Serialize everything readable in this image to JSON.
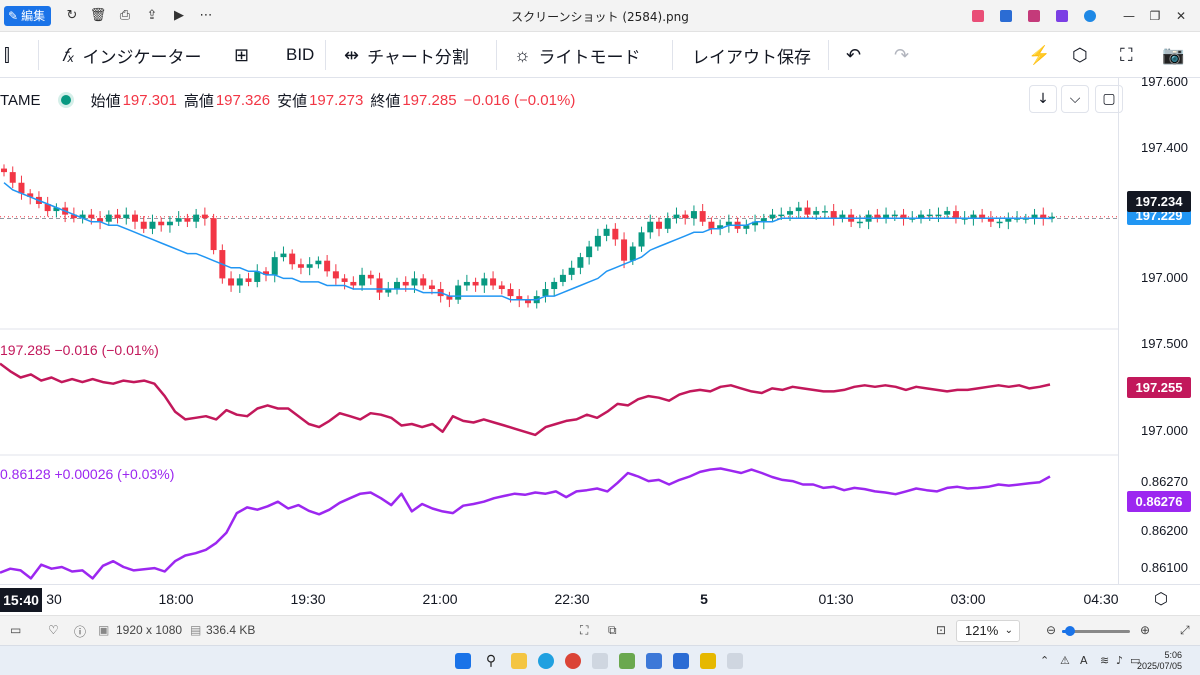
{
  "window": {
    "title": "スクリーンショット (2584).png",
    "edit_label": "編集"
  },
  "toolbar": {
    "indicator_label": "インジケーター",
    "bid_label": "BID",
    "split_label": "チャート分割",
    "light_mode_label": "ライトモード",
    "save_layout_label": "レイアウト保存"
  },
  "legend": {
    "symbol": "TAME",
    "open_label": "始値",
    "open": "197.301",
    "high_label": "高値",
    "high": "197.326",
    "low_label": "安値",
    "low": "197.273",
    "close_label": "終値",
    "close": "197.285",
    "change": "−0.016 (−0.01%)"
  },
  "pane2": {
    "legend": "197.285  −0.016 (−0.01%)",
    "color": "#c2185b"
  },
  "pane3": {
    "legend": "0.86128  +0.00026 (+0.03%)",
    "color": "#9c27f0"
  },
  "price_scale": {
    "main_ticks": [
      "197.600",
      "197.400",
      "197.000"
    ],
    "main_last": "197.234",
    "main_ma": "197.229",
    "pane2_ticks": [
      "197.500",
      "197.000"
    ],
    "pane2_last": "197.255",
    "pane3_ticks": [
      "0.86200",
      "0.86100"
    ],
    "pane3_partial": "0.86270",
    "pane3_last": "0.86276"
  },
  "time_axis": {
    "current": "15:40",
    "partial": "30",
    "ticks": [
      "18:00",
      "19:30",
      "21:00",
      "22:30",
      "5",
      "01:30",
      "03:00",
      "04:30"
    ]
  },
  "viewer": {
    "dimensions": "1920 x 1080",
    "size": "336.4 KB",
    "zoom": "121%",
    "zoom_fraction": 0.12
  },
  "clock": {
    "time": "5:06",
    "date": "2025/07/05"
  },
  "colors": {
    "up": "#089981",
    "down": "#f23645",
    "ma": "#2196f3",
    "last_price_bg": "#131722",
    "ma_tag_bg": "#2196f3",
    "pane2_tag_bg": "#c2185b",
    "pane3_tag_bg": "#9c27f0"
  },
  "chart_data": [
    {
      "type": "candlestick",
      "title": "",
      "ylim": [
        196.92,
        197.62
      ],
      "x_ticks": [
        "15:30",
        "18:00",
        "19:30",
        "21:00",
        "22:30",
        "5",
        "01:30",
        "03:00",
        "04:30"
      ],
      "close_series": [
        197.36,
        197.33,
        197.3,
        197.29,
        197.27,
        197.25,
        197.26,
        197.24,
        197.23,
        197.24,
        197.23,
        197.22,
        197.24,
        197.23,
        197.24,
        197.22,
        197.2,
        197.22,
        197.21,
        197.22,
        197.23,
        197.22,
        197.24,
        197.23,
        197.14,
        197.06,
        197.04,
        197.06,
        197.05,
        197.08,
        197.07,
        197.12,
        197.13,
        197.1,
        197.09,
        197.1,
        197.11,
        197.08,
        197.06,
        197.05,
        197.04,
        197.07,
        197.06,
        197.02,
        197.03,
        197.05,
        197.04,
        197.06,
        197.04,
        197.03,
        197.01,
        197.0,
        197.04,
        197.05,
        197.04,
        197.06,
        197.04,
        197.03,
        197.01,
        197.0,
        196.99,
        197.01,
        197.03,
        197.05,
        197.07,
        197.09,
        197.12,
        197.15,
        197.18,
        197.2,
        197.17,
        197.11,
        197.15,
        197.19,
        197.22,
        197.2,
        197.23,
        197.24,
        197.23,
        197.25,
        197.22,
        197.2,
        197.21,
        197.22,
        197.2,
        197.21,
        197.22,
        197.23,
        197.24,
        197.24,
        197.25,
        197.26,
        197.24,
        197.25,
        197.25,
        197.23,
        197.24,
        197.22,
        197.22,
        197.24,
        197.23,
        197.24,
        197.24,
        197.23,
        197.23,
        197.24,
        197.24,
        197.24,
        197.25,
        197.23,
        197.23,
        197.24,
        197.23,
        197.22,
        197.22,
        197.23,
        197.23,
        197.23,
        197.24,
        197.23,
        197.234
      ],
      "ma_series": [
        197.33,
        197.31,
        197.3,
        197.29,
        197.28,
        197.27,
        197.26,
        197.25,
        197.24,
        197.23,
        197.22,
        197.22,
        197.21,
        197.21,
        197.2,
        197.19,
        197.18,
        197.17,
        197.16,
        197.15,
        197.14,
        197.13,
        197.13,
        197.12,
        197.11,
        197.1,
        197.09,
        197.09,
        197.08,
        197.08,
        197.07,
        197.07,
        197.06,
        197.06,
        197.05,
        197.05,
        197.05,
        197.04,
        197.04,
        197.04,
        197.03,
        197.03,
        197.03,
        197.03,
        197.03,
        197.03,
        197.03,
        197.03,
        197.02,
        197.02,
        197.02,
        197.01,
        197.01,
        197.01,
        197.01,
        197.01,
        197.01,
        197.01,
        197.0,
        197.0,
        197.0,
        197.0,
        197.01,
        197.01,
        197.02,
        197.03,
        197.04,
        197.05,
        197.06,
        197.08,
        197.09,
        197.1,
        197.11,
        197.12,
        197.14,
        197.15,
        197.16,
        197.17,
        197.18,
        197.19,
        197.19,
        197.2,
        197.2,
        197.21,
        197.21,
        197.21,
        197.22,
        197.22,
        197.22,
        197.23,
        197.23,
        197.23,
        197.23,
        197.23,
        197.23,
        197.23,
        197.23,
        197.23,
        197.23,
        197.23,
        197.23,
        197.23,
        197.23,
        197.23,
        197.23,
        197.23,
        197.23,
        197.23,
        197.23,
        197.23,
        197.23,
        197.23,
        197.23,
        197.23,
        197.23,
        197.23,
        197.23,
        197.23,
        197.23,
        197.23,
        197.229
      ],
      "last_price": 197.234
    },
    {
      "type": "line",
      "series": [
        {
          "values": [
            197.39,
            197.34,
            197.3,
            197.32,
            197.28,
            197.3,
            197.27,
            197.29,
            197.27,
            197.29,
            197.27,
            197.26,
            197.28,
            197.27,
            197.28,
            197.26,
            197.18,
            197.08,
            197.03,
            197.04,
            197.05,
            197.03,
            197.09,
            197.06,
            197.05,
            197.1,
            197.12,
            197.1,
            197.1,
            197.05,
            197.0,
            196.98,
            197.02,
            197.07,
            197.05,
            197.03,
            197.07,
            197.06,
            197.04,
            196.99,
            197.0,
            196.98,
            197.0,
            196.95,
            197.05,
            197.02,
            197.01,
            197.03,
            197.01,
            196.99,
            196.97,
            196.95,
            196.93,
            196.98,
            197.0,
            197.02,
            197.03,
            197.06,
            197.04,
            197.08,
            197.13,
            197.12,
            197.16,
            197.18,
            197.17,
            197.15,
            197.19,
            197.21,
            197.22,
            197.21,
            197.24,
            197.25,
            197.23,
            197.21,
            197.2,
            197.23,
            197.22,
            197.24,
            197.23,
            197.22,
            197.21,
            197.21,
            197.22,
            197.24,
            197.25,
            197.24,
            197.25,
            197.24,
            197.22,
            197.24,
            197.23,
            197.22,
            197.21,
            197.22,
            197.22,
            197.23,
            197.24,
            197.25,
            197.24,
            197.25,
            197.23,
            197.24,
            197.255
          ]
        }
      ],
      "ylim": [
        196.8,
        197.6
      ]
    },
    {
      "type": "line",
      "series": [
        {
          "values": [
            0.86108,
            0.86115,
            0.86112,
            0.86098,
            0.86122,
            0.86115,
            0.86118,
            0.8611,
            0.86112,
            0.86098,
            0.8612,
            0.86128,
            0.86118,
            0.86112,
            0.86114,
            0.86116,
            0.8611,
            0.86128,
            0.86138,
            0.86142,
            0.86148,
            0.8616,
            0.86178,
            0.86212,
            0.86222,
            0.86218,
            0.86224,
            0.86232,
            0.8622,
            0.86226,
            0.86216,
            0.8621,
            0.86218,
            0.8623,
            0.86238,
            0.86246,
            0.86248,
            0.86238,
            0.86226,
            0.86246,
            0.86215,
            0.86228,
            0.8622,
            0.86215,
            0.86212,
            0.86225,
            0.86228,
            0.86232,
            0.86238,
            0.86242,
            0.86246,
            0.86244,
            0.86248,
            0.86246,
            0.8625,
            0.8624,
            0.8625,
            0.86252,
            0.86255,
            0.8625,
            0.86265,
            0.86282,
            0.86276,
            0.86268,
            0.8627,
            0.86262,
            0.8627,
            0.86276,
            0.86284,
            0.86288,
            0.8629,
            0.86286,
            0.86282,
            0.86288,
            0.86282,
            0.86275,
            0.8627,
            0.86268,
            0.86262,
            0.86262,
            0.86256,
            0.86258,
            0.86252,
            0.86256,
            0.86254,
            0.8625,
            0.86248,
            0.86245,
            0.8625,
            0.86255,
            0.86252,
            0.8625,
            0.86256,
            0.86258,
            0.86255,
            0.86256,
            0.86258,
            0.86262,
            0.8626,
            0.86262,
            0.86264,
            0.86266,
            0.86276
          ]
        }
      ],
      "ylim": [
        0.8609,
        0.8631
      ]
    }
  ]
}
